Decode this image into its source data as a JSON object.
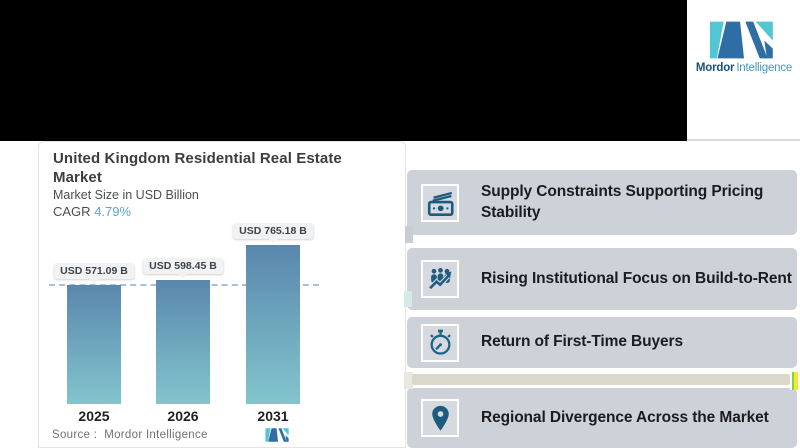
{
  "brand": {
    "name_bold": "Mordor",
    "name_light": "Intelligence"
  },
  "chart_card": {
    "title": "United Kingdom Residential Real Estate Market",
    "subtitle": "Market Size in USD Billion",
    "cagr_label": "CAGR",
    "cagr_value": "4.79%",
    "source": "Source :  Mordor Intelligence"
  },
  "chart_data": {
    "type": "bar",
    "categories": [
      "2025",
      "2026",
      "2031"
    ],
    "values": [
      571.09,
      598.45,
      765.18
    ],
    "value_labels": [
      "USD 571.09 B",
      "USD 598.45 B",
      "USD 765.18 B"
    ],
    "title": "United Kingdom Residential Real Estate Market",
    "xlabel": "",
    "ylabel": "Market Size in USD Billion",
    "ylim": [
      0,
      765.18
    ],
    "reference_line": 571.09,
    "grid": false,
    "legend": false,
    "bar_gradient": [
      "#5a87ad",
      "#82c5cd"
    ]
  },
  "highlights": {
    "items": [
      {
        "icon": "banknotes-icon",
        "text": "Supply Constraints Supporting Pricing Stability"
      },
      {
        "icon": "investors-growth-icon",
        "text": "Rising Institutional Focus on Build-to-Rent"
      },
      {
        "icon": "stopwatch-icon",
        "text": "Return of First-Time Buyers"
      },
      {
        "icon": "map-pin-icon",
        "text": "Regional Divergence Across the Market"
      }
    ]
  },
  "colors": {
    "banner": "#000000",
    "accent_blue": "#5fa3c9",
    "panel_item_bg": "#cdd1d8",
    "icon_blue": "#1d5c80",
    "logo_navy": "#2f6da5",
    "logo_teal": "#53c6d3"
  }
}
